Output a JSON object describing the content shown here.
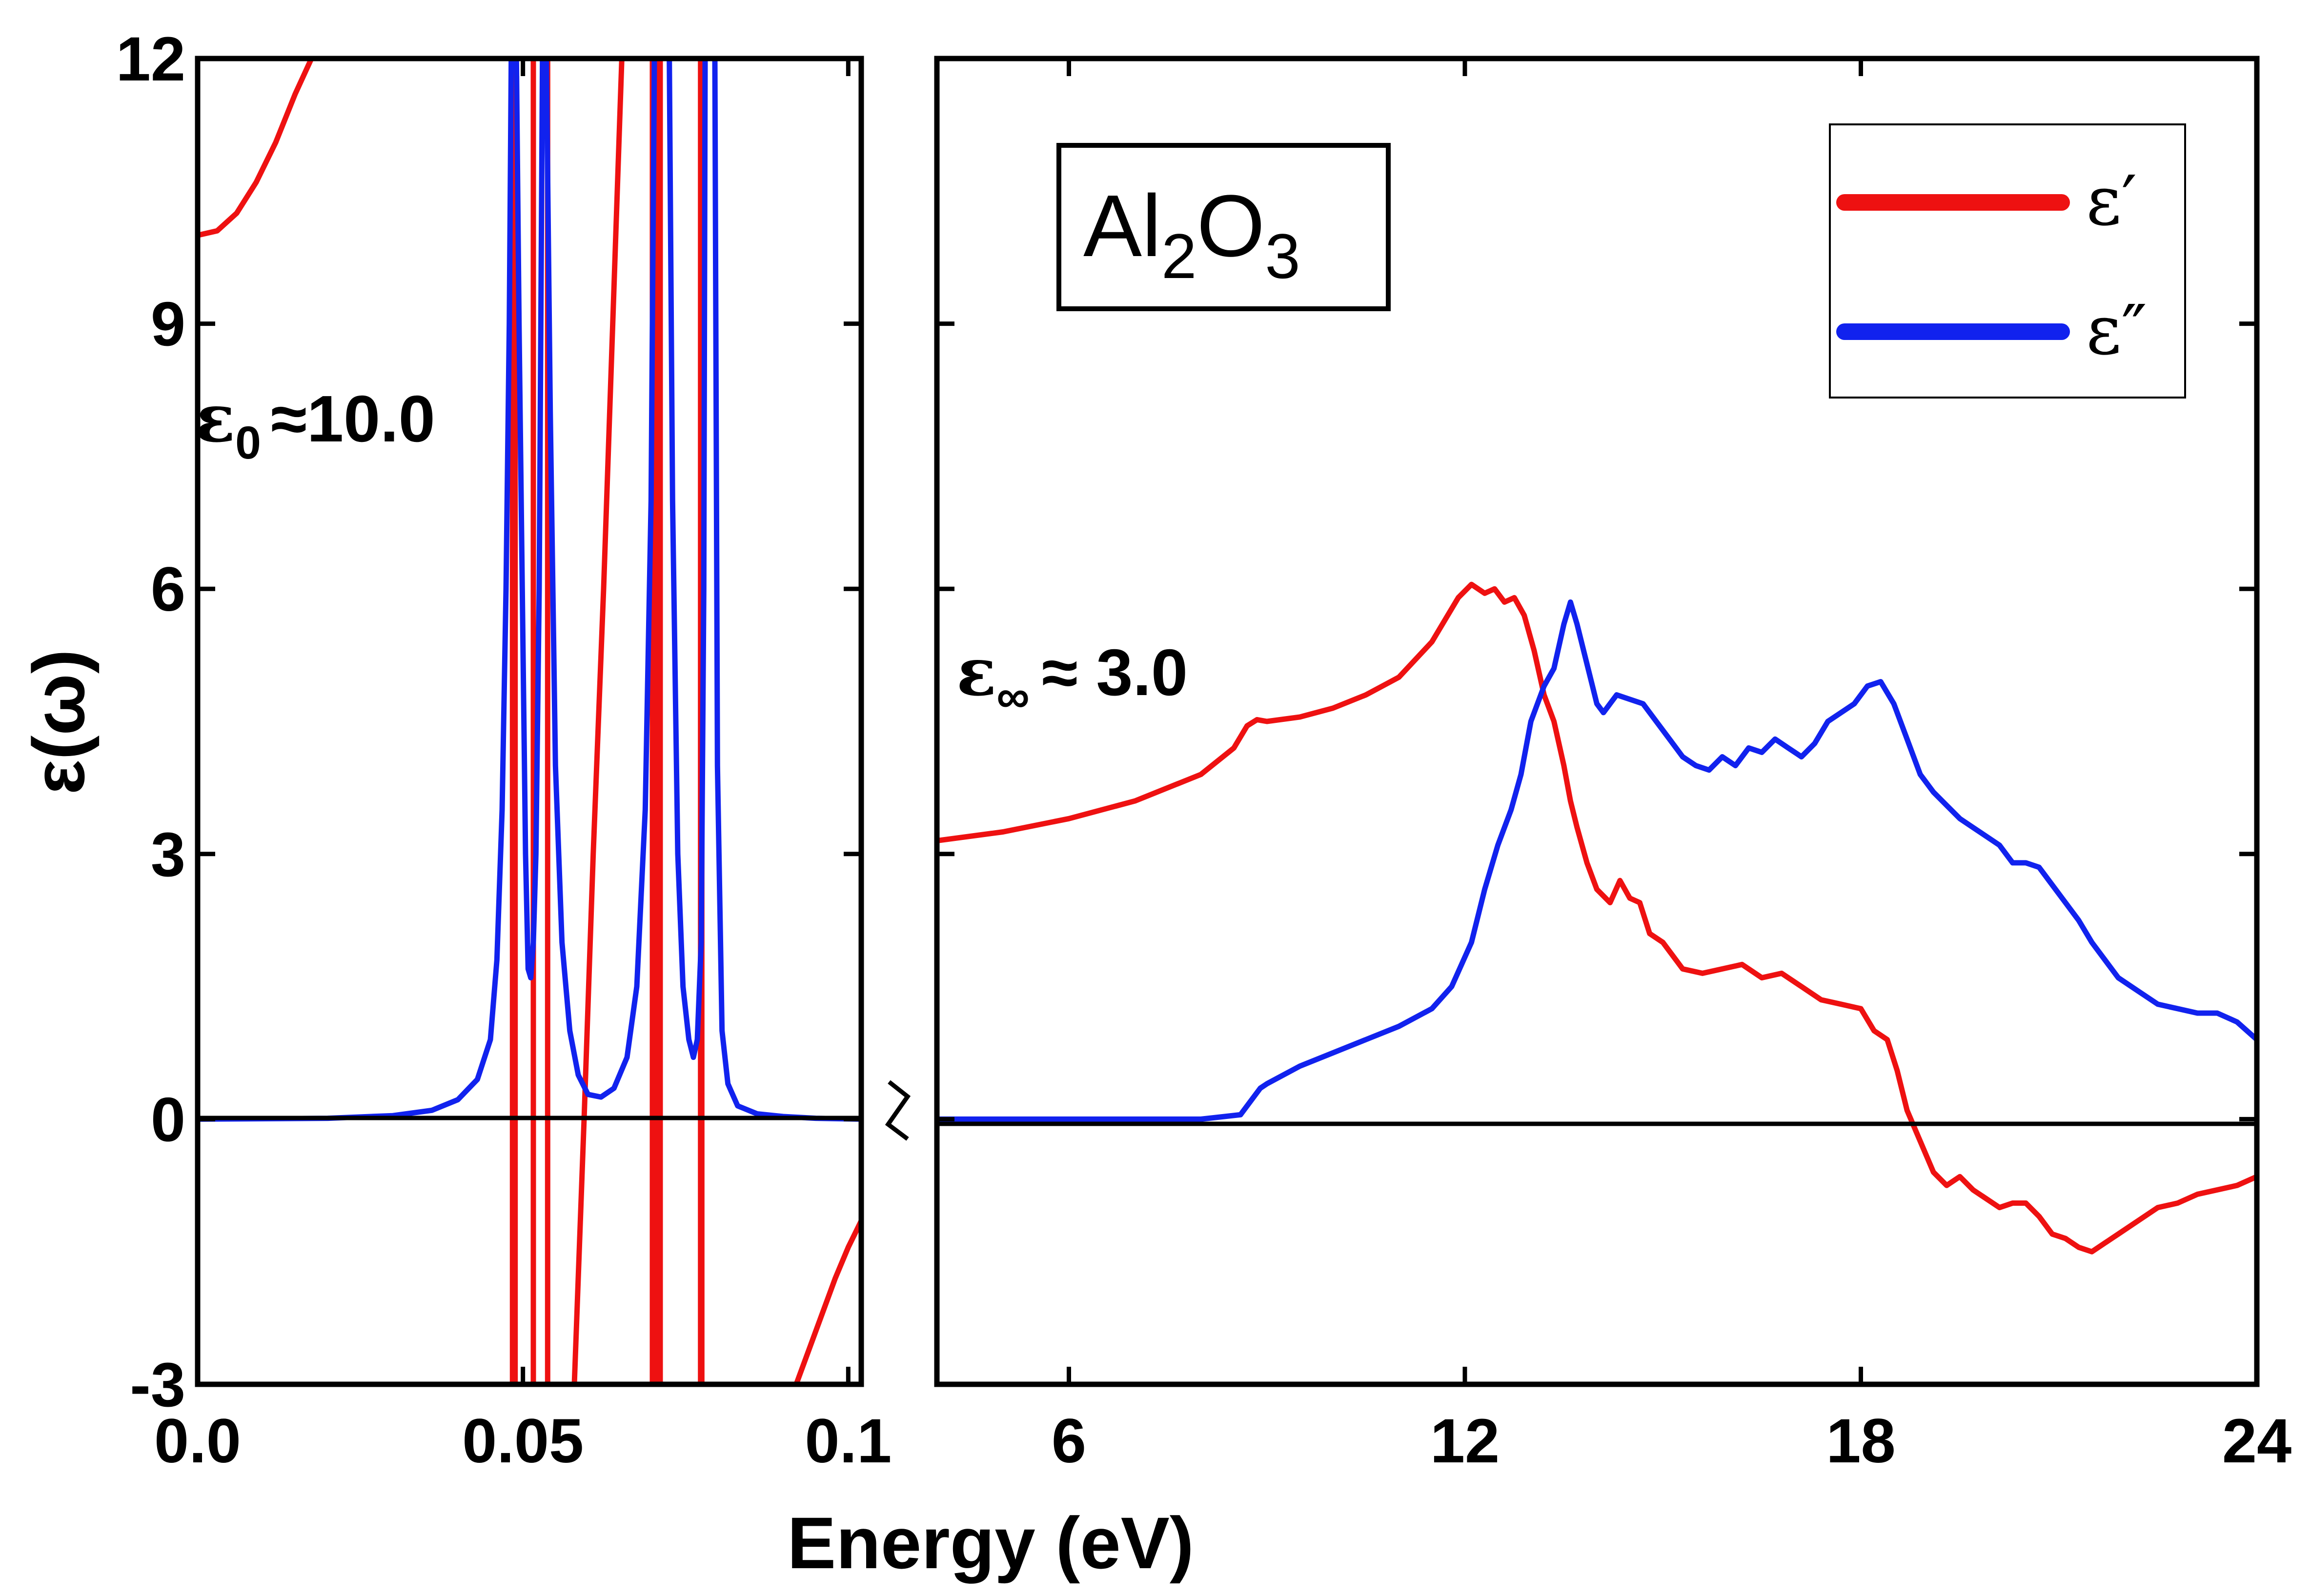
{
  "chart_data": [
    {
      "type": "line",
      "panel": "left",
      "xlabel": "Energy (eV)",
      "ylabel": "ε(ω)",
      "xlim": [
        0.0,
        0.102
      ],
      "ylim": [
        -3,
        12
      ],
      "x_ticks": [
        0.0,
        0.05,
        0.1
      ],
      "x_tick_labels": [
        "0.0",
        "0.05",
        "0.1"
      ],
      "y_ticks": [
        -3,
        0,
        3,
        6,
        9,
        12
      ],
      "y_tick_labels": [
        "-3",
        "0",
        "3",
        "6",
        "9",
        "12"
      ],
      "annotation": {
        "symbol": "ε",
        "subscript": "0",
        "text": "≈10.0"
      },
      "series": [
        {
          "name": "ε′",
          "color": "#ee1111",
          "segments": [
            [
              [
                0.0,
                10.0
              ],
              [
                0.003,
                10.05
              ],
              [
                0.006,
                10.25
              ],
              [
                0.009,
                10.6
              ],
              [
                0.012,
                11.05
              ],
              [
                0.015,
                11.6
              ],
              [
                0.0175,
                12.0
              ]
            ],
            [
              [
                0.0484,
                12
              ],
              [
                0.0484,
                -3
              ]
            ],
            [
              [
                0.0488,
                -3
              ],
              [
                0.0488,
                12
              ]
            ],
            [
              [
                0.0516,
                12
              ],
              [
                0.0516,
                -3
              ]
            ],
            [
              [
                0.0538,
                -3
              ],
              [
                0.0538,
                12
              ]
            ],
            [
              [
                0.0579,
                -3
              ],
              [
                0.0594,
                0
              ],
              [
                0.0608,
                3
              ],
              [
                0.0624,
                6
              ],
              [
                0.0638,
                9
              ],
              [
                0.0652,
                12
              ]
            ],
            [
              [
                0.0699,
                12
              ],
              [
                0.0699,
                -3
              ]
            ],
            [
              [
                0.0703,
                -3
              ],
              [
                0.0703,
                12
              ]
            ],
            [
              [
                0.0708,
                12
              ],
              [
                0.0708,
                -3
              ]
            ],
            [
              [
                0.0711,
                -3
              ],
              [
                0.0711,
                12
              ]
            ],
            [
              [
                0.0773,
                12
              ],
              [
                0.0773,
                -3
              ]
            ],
            [
              [
                0.0775,
                -3
              ],
              [
                0.0775,
                12
              ]
            ],
            [
              [
                0.092,
                -3
              ],
              [
                0.095,
                -2.4
              ],
              [
                0.098,
                -1.8
              ],
              [
                0.1,
                -1.45
              ],
              [
                0.102,
                -1.15
              ]
            ]
          ]
        },
        {
          "name": "ε″",
          "color": "#1122ee",
          "segments": [
            [
              [
                0.0,
                0.0
              ],
              [
                0.02,
                0.01
              ],
              [
                0.03,
                0.04
              ],
              [
                0.036,
                0.1
              ],
              [
                0.04,
                0.22
              ],
              [
                0.043,
                0.45
              ],
              [
                0.045,
                0.9
              ],
              [
                0.046,
                1.8
              ],
              [
                0.0468,
                3.5
              ],
              [
                0.0474,
                6
              ],
              [
                0.0479,
                9
              ],
              [
                0.0482,
                12
              ]
            ],
            [
              [
                0.049,
                12
              ],
              [
                0.0494,
                9
              ],
              [
                0.0499,
                6
              ],
              [
                0.0504,
                3
              ],
              [
                0.0508,
                1.7
              ],
              [
                0.0512,
                1.6
              ],
              [
                0.0516,
                2.0
              ],
              [
                0.052,
                3
              ],
              [
                0.0525,
                6
              ],
              [
                0.053,
                12
              ]
            ],
            [
              [
                0.0536,
                12
              ],
              [
                0.0542,
                8
              ],
              [
                0.055,
                4
              ],
              [
                0.056,
                2
              ],
              [
                0.0572,
                1.0
              ],
              [
                0.0585,
                0.5
              ],
              [
                0.06,
                0.28
              ],
              [
                0.062,
                0.25
              ],
              [
                0.064,
                0.35
              ],
              [
                0.066,
                0.7
              ],
              [
                0.0675,
                1.5
              ],
              [
                0.0688,
                3.5
              ],
              [
                0.0697,
                7
              ],
              [
                0.0702,
                12
              ]
            ],
            [
              [
                0.0725,
                12
              ],
              [
                0.073,
                7
              ],
              [
                0.0738,
                3
              ],
              [
                0.0746,
                1.5
              ],
              [
                0.0755,
                0.9
              ],
              [
                0.0762,
                0.7
              ],
              [
                0.0768,
                0.9
              ],
              [
                0.0774,
                2
              ],
              [
                0.0778,
                6
              ],
              [
                0.078,
                12
              ]
            ],
            [
              [
                0.0795,
                12
              ],
              [
                0.0799,
                4
              ],
              [
                0.0806,
                1
              ],
              [
                0.0815,
                0.4
              ],
              [
                0.083,
                0.15
              ],
              [
                0.086,
                0.06
              ],
              [
                0.09,
                0.03
              ],
              [
                0.095,
                0.01
              ],
              [
                0.102,
                0.0
              ]
            ]
          ]
        }
      ]
    },
    {
      "type": "line",
      "panel": "right",
      "xlabel": "Energy (eV)",
      "xlim": [
        4,
        24
      ],
      "ylim": [
        -3,
        12
      ],
      "x_ticks": [
        6,
        12,
        18,
        24
      ],
      "x_tick_labels": [
        "6",
        "12",
        "18",
        "24"
      ],
      "y_ticks": [
        -3,
        0,
        3,
        6,
        9,
        12
      ],
      "annotation": {
        "symbol": "ε",
        "subscript": "∞",
        "text": "≈ 3.0"
      },
      "material_label": {
        "main": "Al",
        "sub1": "2",
        "mid": "O",
        "sub2": "3"
      },
      "legend": {
        "position": "top-right"
      },
      "series": [
        {
          "name": "ε′",
          "color": "#ee1111",
          "x": [
            4.0,
            5.0,
            6.0,
            7.0,
            8.0,
            8.5,
            8.7,
            8.85,
            9.0,
            9.5,
            10.0,
            10.5,
            11.0,
            11.5,
            11.9,
            12.1,
            12.3,
            12.45,
            12.6,
            12.75,
            12.9,
            13.05,
            13.2,
            13.35,
            13.5,
            13.6,
            13.7,
            13.85,
            14.0,
            14.2,
            14.35,
            14.5,
            14.65,
            14.8,
            15.0,
            15.3,
            15.6,
            15.9,
            16.2,
            16.5,
            16.8,
            17.1,
            17.4,
            17.7,
            18.0,
            18.2,
            18.4,
            18.55,
            18.7,
            18.9,
            19.1,
            19.3,
            19.5,
            19.7,
            19.9,
            20.1,
            20.3,
            20.5,
            20.7,
            20.9,
            21.1,
            21.3,
            21.5,
            21.7,
            21.9,
            22.2,
            22.5,
            22.8,
            23.1,
            23.4,
            23.7,
            24.0
          ],
          "values": [
            3.15,
            3.25,
            3.4,
            3.6,
            3.9,
            4.2,
            4.45,
            4.52,
            4.5,
            4.55,
            4.65,
            4.8,
            5.0,
            5.4,
            5.9,
            6.05,
            5.95,
            6.0,
            5.85,
            5.9,
            5.7,
            5.3,
            4.8,
            4.5,
            4.0,
            3.6,
            3.3,
            2.9,
            2.6,
            2.45,
            2.7,
            2.5,
            2.45,
            2.1,
            2.0,
            1.7,
            1.65,
            1.7,
            1.75,
            1.6,
            1.65,
            1.5,
            1.35,
            1.3,
            1.25,
            1.0,
            0.9,
            0.55,
            0.1,
            -0.25,
            -0.6,
            -0.75,
            -0.65,
            -0.8,
            -0.9,
            -1.0,
            -0.95,
            -0.95,
            -1.1,
            -1.3,
            -1.35,
            -1.45,
            -1.5,
            -1.4,
            -1.3,
            -1.15,
            -1.0,
            -0.95,
            -0.85,
            -0.8,
            -0.75,
            -0.65
          ]
        },
        {
          "name": "ε″",
          "color": "#1122ee",
          "x": [
            4.0,
            6.0,
            8.0,
            8.6,
            8.75,
            8.9,
            9.0,
            9.5,
            10.0,
            10.5,
            11.0,
            11.5,
            11.8,
            12.1,
            12.3,
            12.5,
            12.7,
            12.85,
            13.0,
            13.2,
            13.35,
            13.5,
            13.6,
            13.7,
            13.8,
            13.9,
            14.0,
            14.1,
            14.3,
            14.5,
            14.7,
            14.9,
            15.1,
            15.3,
            15.5,
            15.7,
            15.9,
            16.1,
            16.3,
            16.5,
            16.7,
            16.9,
            17.1,
            17.3,
            17.5,
            17.7,
            17.9,
            18.1,
            18.3,
            18.5,
            18.7,
            18.9,
            19.1,
            19.3,
            19.5,
            19.7,
            19.9,
            20.1,
            20.3,
            20.5,
            20.7,
            20.9,
            21.1,
            21.3,
            21.5,
            21.7,
            21.9,
            22.2,
            22.5,
            22.8,
            23.1,
            23.4,
            23.7,
            24.0
          ],
          "values": [
            0.0,
            0.0,
            0.0,
            0.05,
            0.2,
            0.35,
            0.4,
            0.6,
            0.75,
            0.9,
            1.05,
            1.25,
            1.5,
            2.0,
            2.6,
            3.1,
            3.5,
            3.9,
            4.5,
            4.9,
            5.1,
            5.6,
            5.85,
            5.6,
            5.3,
            5.0,
            4.7,
            4.6,
            4.8,
            4.75,
            4.7,
            4.5,
            4.3,
            4.1,
            4.0,
            3.95,
            4.1,
            4.0,
            4.2,
            4.15,
            4.3,
            4.2,
            4.1,
            4.25,
            4.5,
            4.6,
            4.7,
            4.9,
            4.95,
            4.7,
            4.3,
            3.9,
            3.7,
            3.55,
            3.4,
            3.3,
            3.2,
            3.1,
            2.9,
            2.9,
            2.85,
            2.65,
            2.45,
            2.25,
            2.0,
            1.8,
            1.6,
            1.45,
            1.3,
            1.25,
            1.2,
            1.2,
            1.1,
            0.9
          ]
        }
      ]
    }
  ]
}
